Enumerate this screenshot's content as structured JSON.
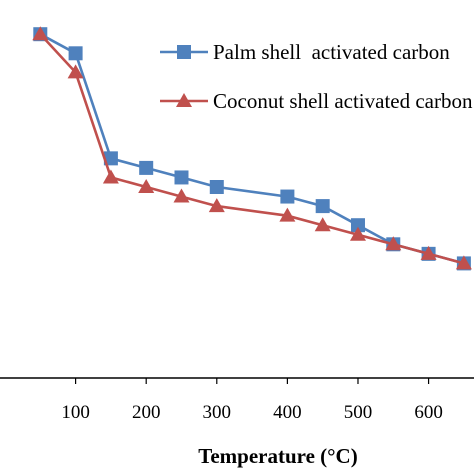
{
  "chart_data": {
    "type": "line",
    "title": "",
    "xlabel": "Temperature (°C)",
    "ylabel": "",
    "xlim": [
      0,
      670
    ],
    "ylim": [
      0,
      100
    ],
    "x_ticks": [
      100,
      200,
      300,
      400,
      500,
      600
    ],
    "grid": false,
    "legend_position": "top-right",
    "series": [
      {
        "name": "Palm shell  activated carbon",
        "color": "#4F81BD",
        "marker": "square",
        "points": [
          {
            "x": 50,
            "y": 90
          },
          {
            "x": 100,
            "y": 85
          },
          {
            "x": 150,
            "y": 57.5
          },
          {
            "x": 200,
            "y": 55
          },
          {
            "x": 250,
            "y": 52.5
          },
          {
            "x": 300,
            "y": 50
          },
          {
            "x": 400,
            "y": 47.5
          },
          {
            "x": 450,
            "y": 45
          },
          {
            "x": 500,
            "y": 40
          },
          {
            "x": 550,
            "y": 35
          },
          {
            "x": 600,
            "y": 32.5
          },
          {
            "x": 650,
            "y": 30
          }
        ]
      },
      {
        "name": "Coconut shell activated carbon",
        "color": "#C0504D",
        "marker": "triangle",
        "points": [
          {
            "x": 50,
            "y": 90
          },
          {
            "x": 100,
            "y": 80
          },
          {
            "x": 150,
            "y": 52.5
          },
          {
            "x": 200,
            "y": 50
          },
          {
            "x": 250,
            "y": 47.5
          },
          {
            "x": 300,
            "y": 45
          },
          {
            "x": 400,
            "y": 42.5
          },
          {
            "x": 450,
            "y": 40
          },
          {
            "x": 500,
            "y": 37.5
          },
          {
            "x": 550,
            "y": 35
          },
          {
            "x": 600,
            "y": 32.5
          },
          {
            "x": 650,
            "y": 30
          }
        ]
      }
    ]
  }
}
